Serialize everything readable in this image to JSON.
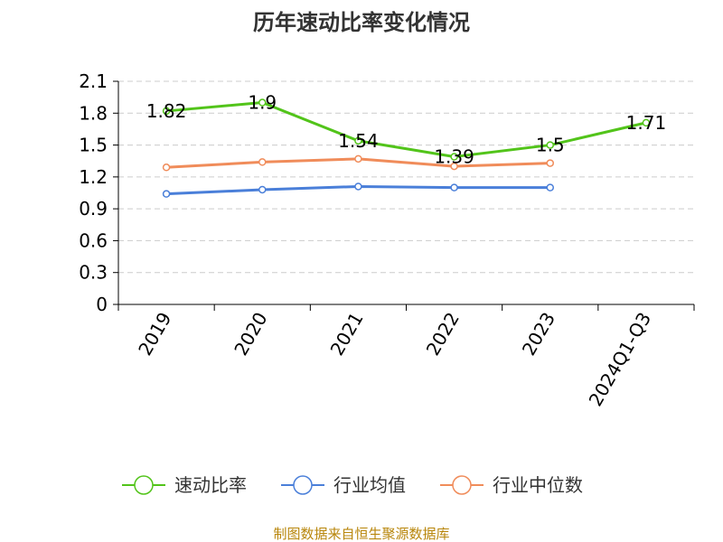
{
  "chart_data": {
    "type": "line",
    "title": "历年速动比率变化情况",
    "categories": [
      "2019",
      "2020",
      "2021",
      "2022",
      "2023",
      "2024Q1-Q3"
    ],
    "ylim": [
      0,
      2.1
    ],
    "yticks": [
      "0",
      "0.3",
      "0.6",
      "0.9",
      "1.2",
      "1.5",
      "1.8",
      "2.1"
    ],
    "grid": true,
    "legend_position": "bottom",
    "series": [
      {
        "name": "速动比率",
        "color": "#52c41a",
        "values": [
          1.82,
          1.9,
          1.54,
          1.39,
          1.5,
          1.71
        ],
        "labels": [
          "1.82",
          "1.9",
          "1.54",
          "1.39",
          "1.5",
          "1.71"
        ]
      },
      {
        "name": "行业均值",
        "color": "#4a7fd9",
        "values": [
          1.04,
          1.08,
          1.11,
          1.1,
          1.1,
          null
        ]
      },
      {
        "name": "行业中位数",
        "color": "#f08c5a",
        "values": [
          1.29,
          1.34,
          1.37,
          1.3,
          1.33,
          null
        ]
      }
    ]
  },
  "source": "制图数据来自恒生聚源数据库"
}
